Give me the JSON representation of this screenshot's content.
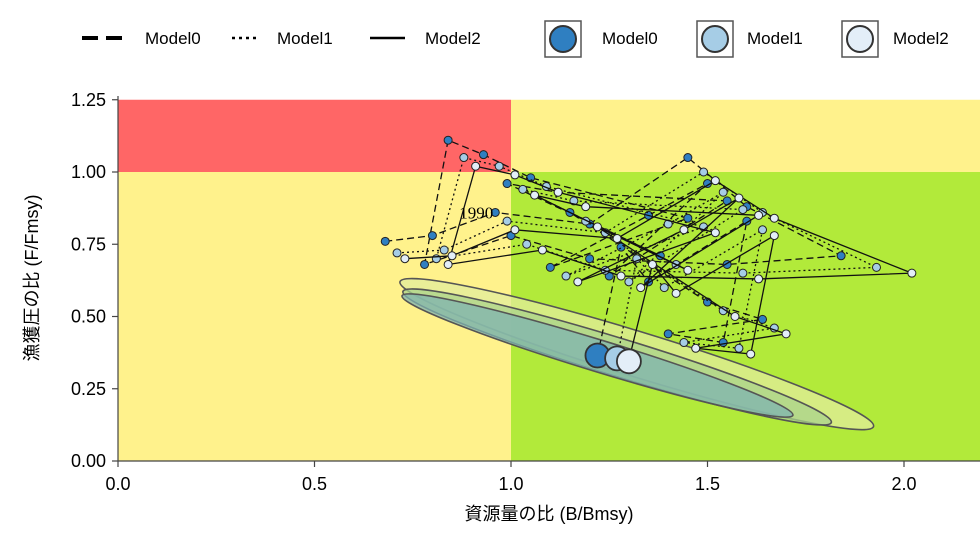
{
  "chart_data": {
    "type": "scatter",
    "title": "",
    "xlabel": "資源量の比 (B/Bmsy)",
    "ylabel": "漁獲圧の比 (F/Fmsy)",
    "xlim": [
      0,
      2.2
    ],
    "ylim": [
      0,
      1.25
    ],
    "xticks": [
      "0.0",
      "0.5",
      "1.0",
      "1.5",
      "2.0"
    ],
    "yticks": [
      "0.00",
      "0.25",
      "0.50",
      "0.75",
      "1.00",
      "1.25"
    ],
    "x_tick_values": [
      0,
      0.5,
      1.0,
      1.5,
      2.0
    ],
    "y_tick_values": [
      0,
      0.25,
      0.5,
      0.75,
      1.0,
      1.25
    ],
    "grid": false,
    "legend_placement": "top",
    "annotation": "1990",
    "annotation_point": [
      0.96,
      0.86
    ],
    "regions": [
      {
        "name": "overfishing-overfished",
        "x": [
          0,
          1
        ],
        "y": [
          1,
          1.25
        ],
        "color": "#ff6666"
      },
      {
        "name": "overfished",
        "x": [
          0,
          1
        ],
        "y": [
          0,
          1
        ],
        "color": "#fff28c"
      },
      {
        "name": "overfishing",
        "x": [
          1,
          2.2
        ],
        "y": [
          1,
          1.25
        ],
        "color": "#fff28c"
      },
      {
        "name": "healthy",
        "x": [
          1,
          2.2
        ],
        "y": [
          0,
          1
        ],
        "color": "#b2ea3a"
      }
    ],
    "line_legend": [
      {
        "name": "Model0",
        "style": "longdash"
      },
      {
        "name": "Model1",
        "style": "dotted"
      },
      {
        "name": "Model2",
        "style": "solid"
      }
    ],
    "point_legend": [
      {
        "name": "Model0",
        "color": "#2f7fc1"
      },
      {
        "name": "Model1",
        "color": "#a6cde6"
      },
      {
        "name": "Model2",
        "color": "#e3eef8"
      }
    ],
    "ellipses": [
      {
        "name": "Model0",
        "cx": 1.22,
        "cy": 0.365,
        "rx": 0.52,
        "ry": 0.055,
        "angle_deg": 17,
        "fill": "#7fb3b0"
      },
      {
        "name": "Model1",
        "cx": 1.27,
        "cy": 0.36,
        "rx": 0.57,
        "ry": 0.066,
        "angle_deg": 17,
        "fill": "#a9d38c"
      },
      {
        "name": "Model2",
        "cx": 1.32,
        "cy": 0.37,
        "rx": 0.63,
        "ry": 0.078,
        "angle_deg": 17,
        "fill": "#e2ec9c"
      }
    ],
    "series": [
      {
        "name": "Model0",
        "color": "#2f7fc1",
        "dash": "longdash",
        "x": [
          0.68,
          0.8,
          0.96,
          1.2,
          1.45,
          1.6,
          1.84,
          1.55,
          1.2,
          1.0,
          0.78,
          0.84,
          0.93,
          1.05,
          1.45,
          1.1,
          1.35,
          1.5,
          1.25,
          1.55,
          1.12,
          0.99,
          1.38,
          1.15,
          1.5,
          1.64,
          1.4,
          1.54,
          1.6,
          1.35,
          1.28,
          1.22
        ],
        "y": [
          0.76,
          0.78,
          0.86,
          0.82,
          1.05,
          0.88,
          0.71,
          0.68,
          0.7,
          0.78,
          0.68,
          1.11,
          1.06,
          0.98,
          0.84,
          0.67,
          0.85,
          0.96,
          0.64,
          0.9,
          0.93,
          0.96,
          0.71,
          0.86,
          0.55,
          0.49,
          0.44,
          0.41,
          0.83,
          0.62,
          0.74,
          0.365
        ]
      },
      {
        "name": "Model1",
        "color": "#a6cde6",
        "dash": "dotted",
        "x": [
          0.71,
          0.83,
          0.99,
          1.24,
          1.49,
          1.64,
          1.93,
          1.59,
          1.24,
          1.04,
          0.81,
          0.88,
          0.97,
          1.09,
          1.49,
          1.14,
          1.4,
          1.54,
          1.3,
          1.59,
          1.16,
          1.03,
          1.42,
          1.19,
          1.54,
          1.67,
          1.44,
          1.58,
          1.64,
          1.39,
          1.32,
          1.27
        ],
        "y": [
          0.72,
          0.73,
          0.83,
          0.79,
          1.0,
          0.86,
          0.67,
          0.65,
          0.66,
          0.75,
          0.7,
          1.05,
          1.02,
          0.95,
          0.81,
          0.64,
          0.82,
          0.93,
          0.62,
          0.87,
          0.9,
          0.94,
          0.68,
          0.83,
          0.52,
          0.46,
          0.41,
          0.39,
          0.8,
          0.6,
          0.7,
          0.355
        ]
      },
      {
        "name": "Model2",
        "color": "#e3eef8",
        "dash": "solid",
        "x": [
          0.73,
          0.85,
          1.01,
          1.27,
          1.52,
          1.67,
          2.02,
          1.63,
          1.28,
          1.08,
          0.84,
          0.91,
          1.01,
          1.12,
          1.52,
          1.17,
          1.44,
          1.58,
          1.33,
          1.63,
          1.19,
          1.06,
          1.45,
          1.22,
          1.57,
          1.7,
          1.47,
          1.61,
          1.67,
          1.42,
          1.36,
          1.3
        ],
        "y": [
          0.7,
          0.71,
          0.8,
          0.77,
          0.97,
          0.84,
          0.65,
          0.63,
          0.64,
          0.73,
          0.68,
          1.02,
          0.99,
          0.93,
          0.79,
          0.62,
          0.8,
          0.91,
          0.6,
          0.85,
          0.88,
          0.92,
          0.66,
          0.81,
          0.5,
          0.44,
          0.39,
          0.37,
          0.78,
          0.58,
          0.68,
          0.35
        ]
      }
    ],
    "last_points": [
      {
        "name": "Model0",
        "x": 1.22,
        "y": 0.365,
        "color": "#2f7fc1"
      },
      {
        "name": "Model1",
        "x": 1.27,
        "y": 0.355,
        "color": "#a6cde6"
      },
      {
        "name": "Model2",
        "x": 1.3,
        "y": 0.345,
        "color": "#e3eef8"
      }
    ]
  }
}
